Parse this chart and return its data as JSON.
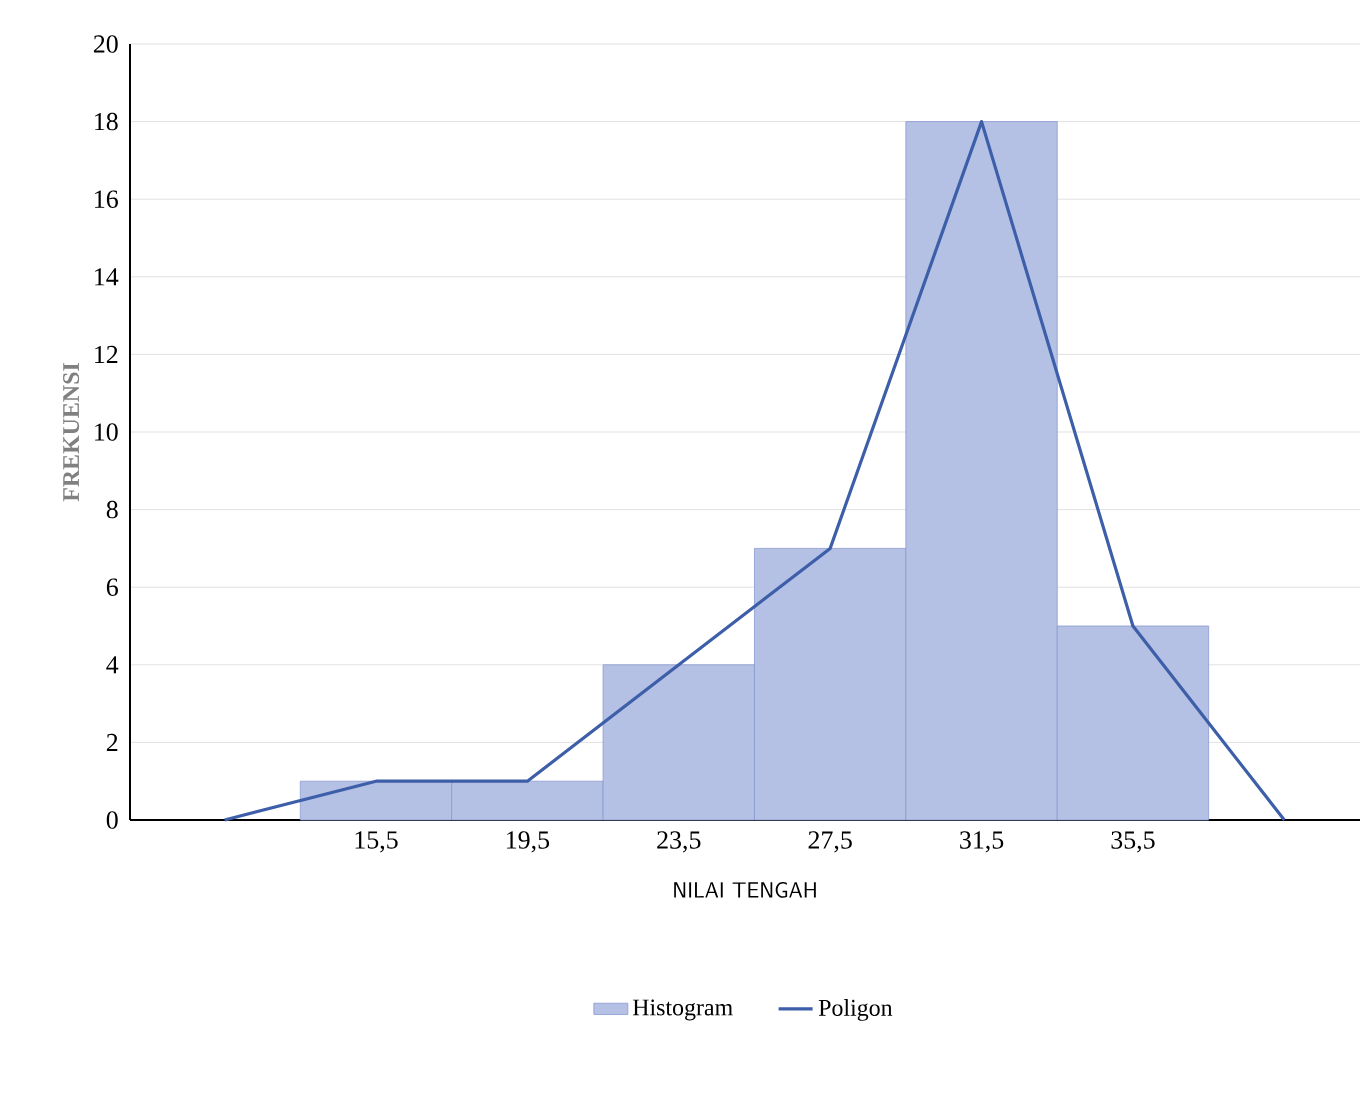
{
  "chart_data": {
    "type": "histogram",
    "xlabel": "NILAI TENGAH",
    "ylabel": "FREKUENSI",
    "bins": [
      13.5,
      17.5,
      21.5,
      25.5,
      29.5,
      33.5,
      37.5
    ],
    "series": [
      {
        "name": "Histogram",
        "type": "histogram",
        "color": "#b4c0e4",
        "values": [
          1,
          1,
          4,
          7,
          18,
          5
        ]
      },
      {
        "name": "Poligon",
        "type": "line",
        "color": "#3d5ea8",
        "x": [
          11.5,
          15.5,
          19.5,
          23.5,
          27.5,
          31.5,
          35.5,
          39.5
        ],
        "values": [
          0,
          1,
          1,
          4,
          7,
          18,
          5,
          0
        ]
      }
    ],
    "xlim": [
      9,
      41.5
    ],
    "ylim": [
      0,
      20
    ],
    "xticks": [
      {
        "value": 15.5,
        "label": "15,5"
      },
      {
        "value": 19.5,
        "label": "19,5"
      },
      {
        "value": 23.5,
        "label": "23,5"
      },
      {
        "value": 27.5,
        "label": "27,5"
      },
      {
        "value": 31.5,
        "label": "31,5"
      },
      {
        "value": 35.5,
        "label": "35,5"
      }
    ],
    "yticks": [
      0,
      2,
      4,
      6,
      8,
      10,
      12,
      14,
      16,
      18,
      20
    ],
    "grid": "y",
    "legend": "bottom",
    "marker": "none",
    "line_style": "solid"
  }
}
